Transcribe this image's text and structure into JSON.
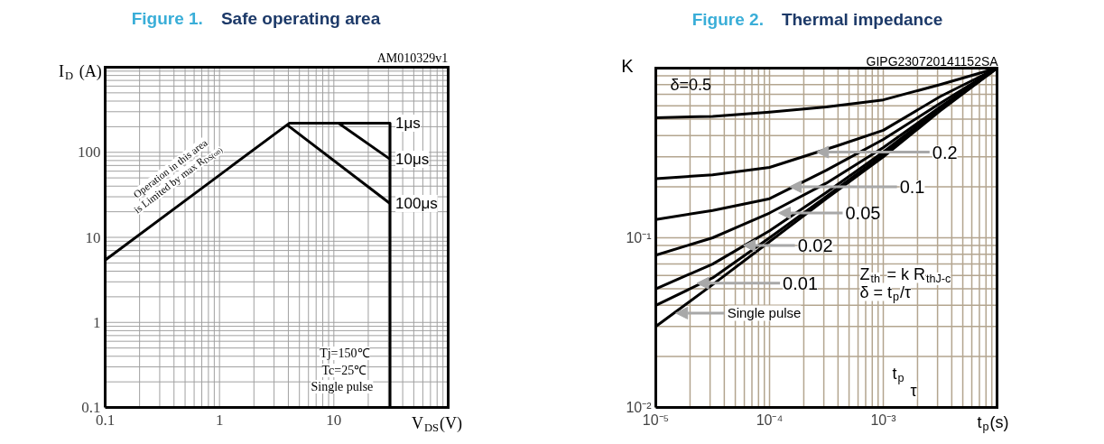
{
  "chart_data": [
    {
      "type": "line",
      "title": "Figure 1. Safe operating area",
      "xlabel": "V$_{DS}$(V)",
      "ylabel": "I$_{D}$ (A)",
      "log": "xy",
      "grid": true,
      "xlim": [
        0.1,
        100
      ],
      "ylim": [
        0.1,
        1000
      ],
      "xticks": [
        0.1,
        1,
        10,
        {
          "value": 100,
          "label": null
        }
      ],
      "yticks": [
        0.1,
        1,
        10,
        100,
        {
          "value": 1000,
          "label": null
        }
      ],
      "series": [
        {
          "name": "1μs",
          "color": "#000000",
          "x": [
            0.1,
            3.9,
            4.1,
            31,
            31
          ],
          "values": [
            5.4,
            210,
            220,
            220,
            0.1
          ]
        },
        {
          "name": "10μs",
          "color": "#000000",
          "x": [
            11,
            31
          ],
          "values": [
            220,
            83
          ]
        },
        {
          "name": "100μs",
          "color": "#000000",
          "x": [
            3.9,
            31
          ],
          "values": [
            210,
            25
          ]
        }
      ],
      "annotations": [
        "AM010329v1",
        "Operation in this area is Limited by max R$_{DS(on)}$",
        "Tj=150℃",
        "Tc=25℃",
        "Single pulse"
      ]
    },
    {
      "type": "line",
      "title": "Figure 2. Thermal impedance",
      "xlabel": "t$_{p}$(s)",
      "ylabel": "K",
      "log": "xy",
      "grid": true,
      "xlim": [
        1e-05,
        0.01
      ],
      "ylim": [
        0.01,
        1
      ],
      "xticks": [
        {
          "value": 1e-05,
          "label": "10⁻⁵"
        },
        {
          "value": 0.0001,
          "label": "10⁻⁴"
        },
        {
          "value": 0.001,
          "label": "10⁻³"
        },
        {
          "value": 0.01,
          "label": null
        }
      ],
      "yticks": [
        {
          "value": 0.01,
          "label": "10⁻²"
        },
        {
          "value": 0.1,
          "label": "10⁻¹"
        },
        {
          "value": 1,
          "label": null
        }
      ],
      "x": [
        1e-05,
        3.16e-05,
        0.0001,
        0.000316,
        0.001,
        0.00316,
        0.01
      ],
      "series": [
        {
          "color": "#000000",
          "values": [
            0.51,
            0.52,
            0.55,
            0.59,
            0.65,
            0.8,
            1
          ]
        },
        {
          "color": "#000000",
          "x": [
            1e-05,
            3.16e-05,
            0.0001,
            0.0004,
            0.001,
            0.00316,
            0.01
          ],
          "values": [
            0.223,
            0.235,
            0.26,
            0.35,
            0.43,
            0.68,
            1
          ]
        },
        {
          "color": "#000000",
          "values": [
            0.128,
            0.145,
            0.17,
            0.25,
            0.38,
            0.62,
            1
          ]
        },
        {
          "color": "#000000",
          "values": [
            0.079,
            0.1,
            0.14,
            0.21,
            0.34,
            0.59,
            1
          ]
        },
        {
          "color": "#000000",
          "values": [
            0.05,
            0.07,
            0.11,
            0.185,
            0.32,
            0.58,
            1
          ]
        },
        {
          "color": "#000000",
          "values": [
            0.04,
            0.058,
            0.1,
            0.175,
            0.31,
            0.57,
            1
          ]
        },
        {
          "color": "#000000",
          "values": [
            0.03,
            0.053,
            0.095,
            0.17,
            0.3,
            0.56,
            1
          ]
        }
      ],
      "annotations": [
        "GIPG230720141152SA",
        "δ=0.5",
        {
          "text": "0.2",
          "x": 0.00026,
          "y": 0.32
        },
        {
          "text": "0.1",
          "x": 0.00015,
          "y": 0.2
        },
        {
          "text": "0.05",
          "x": 0.00012,
          "y": 0.14
        },
        {
          "text": "0.02",
          "x": 5.9e-05,
          "y": 0.09
        },
        {
          "text": "0.01",
          "x": 2.3e-05,
          "y": 0.054
        },
        {
          "text": "Single pulse",
          "x": 1.5e-05,
          "y": 0.036
        },
        "Z$_{th}$ = k R$_{thJ-c}$",
        "δ = t$_{p}$/τ",
        "t$_{p}$",
        "τ"
      ]
    }
  ]
}
